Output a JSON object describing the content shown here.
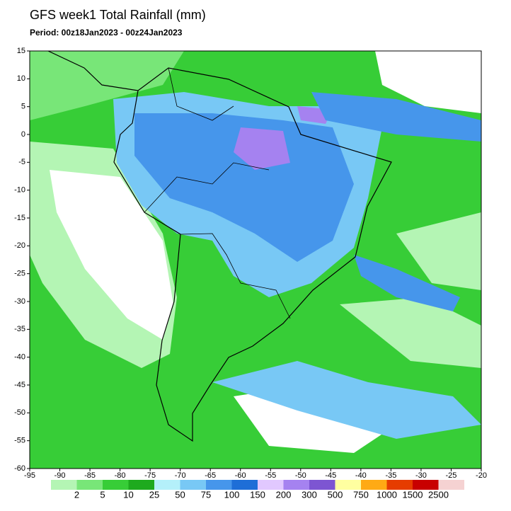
{
  "map": {
    "title": "GFS week1 Total Rainfall (mm)",
    "period": "Period: 00z18Jan2023 - 00z24Jan2023",
    "xlim": [
      -95,
      -20
    ],
    "ylim": [
      -60,
      15
    ],
    "xticks": [
      -95,
      -90,
      -85,
      -80,
      -75,
      -70,
      -65,
      -60,
      -55,
      -50,
      -45,
      -40,
      -35,
      -30,
      -25,
      -20
    ],
    "yticks": [
      15,
      10,
      5,
      0,
      -5,
      -10,
      -15,
      -20,
      -25,
      -30,
      -35,
      -40,
      -45,
      -50,
      -55,
      -60
    ],
    "legend": {
      "labels": [
        "2",
        "5",
        "10",
        "25",
        "50",
        "75",
        "100",
        "150",
        "200",
        "300",
        "500",
        "750",
        "1000",
        "1500",
        "2500"
      ],
      "colors": [
        "#b4f5b4",
        "#78e678",
        "#37cd37",
        "#1eaa1e",
        "#b4f0fa",
        "#78c8f5",
        "#4696eb",
        "#1e6ed7",
        "#e1c8ff",
        "#a582f0",
        "#7d55d2",
        "#ffffa0",
        "#ffaa14",
        "#e63c00",
        "#c80000",
        "#f5d2d2"
      ]
    }
  }
}
